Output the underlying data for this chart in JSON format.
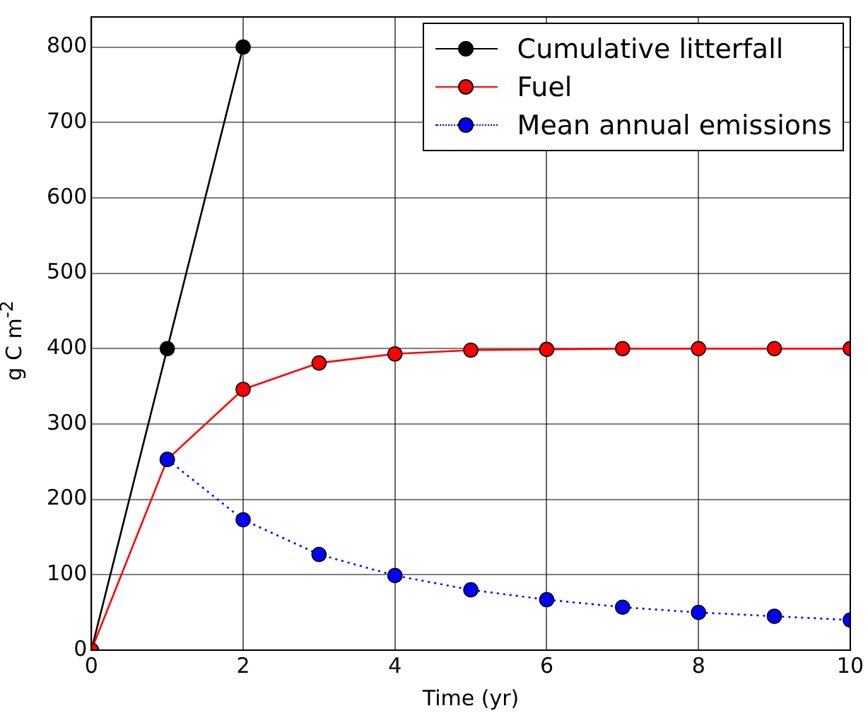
{
  "chart_data": {
    "type": "line",
    "xlabel": "Time (yr)",
    "ylabel": "g C m$^{-2}$",
    "x": [
      0,
      1,
      2,
      3,
      4,
      5,
      6,
      7,
      8,
      9,
      10
    ],
    "series": [
      {
        "name": "Cumulative litterfall",
        "color": "#000000",
        "x": [
          0,
          1,
          2
        ],
        "values": [
          0,
          400,
          800
        ],
        "line_style": "solid"
      },
      {
        "name": "Fuel",
        "color": "#ff0000",
        "values": [
          0,
          253,
          346,
          381,
          393,
          398,
          399,
          400,
          400,
          400,
          400
        ],
        "line_style": "solid"
      },
      {
        "name": "Mean annual emissions",
        "color": "#0000ff",
        "values": [
          null,
          253,
          173,
          127,
          99,
          80,
          67,
          57,
          50,
          45,
          40
        ],
        "line_style": "dotted"
      }
    ],
    "xlim": [
      0,
      10
    ],
    "xticks": [
      0,
      2,
      4,
      6,
      8,
      10
    ],
    "ylim": [
      0,
      840
    ],
    "yticks": [
      0,
      100,
      200,
      300,
      400,
      500,
      600,
      700,
      800
    ],
    "grid": true,
    "legend": "top right",
    "marker": "circle"
  }
}
